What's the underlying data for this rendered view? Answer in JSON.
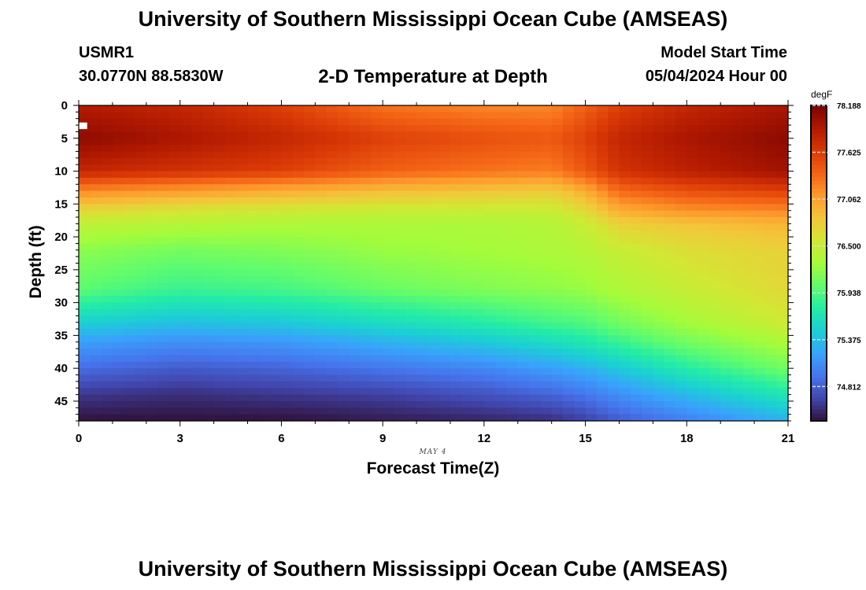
{
  "header": {
    "title": "University of Southern Mississippi Ocean Cube (AMSEAS)",
    "station": "USMR1",
    "coords": "30.0770N  88.5830W",
    "plot_title": "2-D Temperature at Depth",
    "start_label": "Model Start Time",
    "start_value": "05/04/2024 Hour 00"
  },
  "footer": {
    "title": "University of Southern Mississippi Ocean Cube (AMSEAS)"
  },
  "chart_data": {
    "type": "heatmap",
    "title": "2-D Temperature at Depth",
    "xlabel": "Forecast Time(Z)",
    "ylabel": "Depth (ft)",
    "date_label": "MAY 4",
    "x_range": [
      0,
      21
    ],
    "y_range": [
      0,
      48
    ],
    "x_ticks": [
      "0",
      "3",
      "6",
      "9",
      "12",
      "15",
      "18",
      "21"
    ],
    "y_ticks": [
      "0",
      "5",
      "10",
      "15",
      "20",
      "25",
      "30",
      "35",
      "40",
      "45"
    ],
    "colorbar": {
      "unit": "degF",
      "range": [
        74.4,
        78.188
      ],
      "ticks": [
        "78.188",
        "77.625",
        "77.062",
        "76.500",
        "75.938",
        "75.375",
        "74.812"
      ]
    },
    "profile_time_nodes": [
      0,
      3,
      6,
      9,
      12,
      14,
      15,
      16,
      18,
      21
    ],
    "profile_depth_nodes": [
      0,
      5,
      10,
      13,
      16,
      18,
      22,
      28,
      33,
      36,
      40,
      44,
      48
    ],
    "profiles": [
      [
        77.9,
        78.1,
        77.8,
        77.2,
        76.7,
        76.45,
        76.2,
        76.0,
        75.5,
        75.2,
        74.9,
        74.6,
        74.4
      ],
      [
        77.8,
        77.95,
        77.7,
        77.1,
        76.6,
        76.4,
        76.1,
        75.85,
        75.4,
        75.1,
        74.8,
        74.55,
        74.4
      ],
      [
        77.6,
        77.8,
        77.6,
        77.0,
        76.55,
        76.35,
        76.15,
        75.9,
        75.45,
        75.15,
        74.85,
        74.6,
        74.4
      ],
      [
        77.3,
        77.6,
        77.4,
        76.9,
        76.5,
        76.35,
        76.25,
        76.05,
        75.6,
        75.3,
        74.95,
        74.65,
        74.45
      ],
      [
        77.2,
        77.5,
        77.3,
        76.85,
        76.5,
        76.35,
        76.3,
        76.15,
        75.75,
        75.45,
        75.05,
        74.75,
        74.5
      ],
      [
        77.2,
        77.45,
        77.25,
        76.8,
        76.5,
        76.4,
        76.35,
        76.2,
        75.9,
        75.6,
        75.2,
        74.85,
        74.55
      ],
      [
        77.4,
        77.6,
        77.45,
        77.0,
        76.7,
        76.5,
        76.4,
        76.25,
        75.95,
        75.7,
        75.3,
        74.95,
        74.65
      ],
      [
        77.6,
        77.8,
        77.7,
        77.35,
        77.0,
        76.75,
        76.5,
        76.35,
        76.1,
        75.85,
        75.45,
        75.1,
        74.8
      ],
      [
        77.8,
        77.95,
        77.85,
        77.5,
        77.15,
        76.85,
        76.65,
        76.5,
        76.3,
        76.1,
        75.75,
        75.35,
        75.0
      ],
      [
        77.95,
        78.1,
        78.0,
        77.6,
        77.2,
        76.95,
        76.75,
        76.7,
        76.55,
        76.35,
        76.1,
        75.7,
        75.3
      ]
    ],
    "colormap": [
      "#30123b",
      "#4145ab",
      "#4675ed",
      "#39a2fc",
      "#1bcfd4",
      "#24eca6",
      "#61fc6c",
      "#a4fc3b",
      "#d1e834",
      "#f3c63a",
      "#fe9b2d",
      "#f36315",
      "#d93806",
      "#b11901",
      "#7a0402"
    ],
    "gap_color": "#ffffff"
  }
}
